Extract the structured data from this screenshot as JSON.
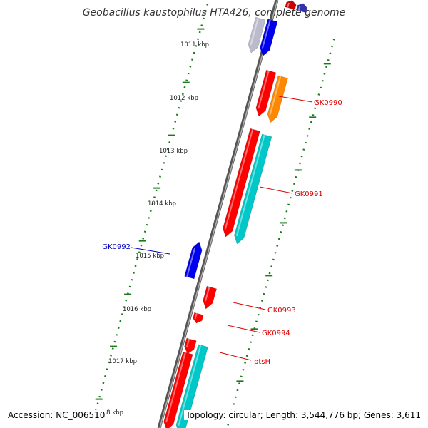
{
  "title": "Geobacillus kaustophilus HTA426, complete genome",
  "accession": "Accession: NC_006510",
  "topology": "Topology: circular; Length: 3,544,776 bp; Genes: 3,611",
  "colors": {
    "backbone": "#808080",
    "tick": "#1a7a1a",
    "red": "#ff0000",
    "orange": "#ff8800",
    "cyan": "#00c8c8",
    "blue": "#0000ee",
    "label_red": "#dd0000",
    "label_blue": "#0000bb"
  },
  "kbp_labels": [
    "1011 kbp",
    "1012 kbp",
    "1013 kbp",
    "1014 kbp",
    "1015 kbp",
    "1016 kbp",
    "1017 kbp",
    "8 kbp"
  ],
  "gene_labels": [
    {
      "text": "GK0990",
      "color": "red"
    },
    {
      "text": "GK0991",
      "color": "red"
    },
    {
      "text": "GK0992",
      "color": "blue"
    },
    {
      "text": "GK0993",
      "color": "red"
    },
    {
      "text": "GK0994",
      "color": "red"
    },
    {
      "text": "ptsH",
      "color": "red"
    }
  ]
}
